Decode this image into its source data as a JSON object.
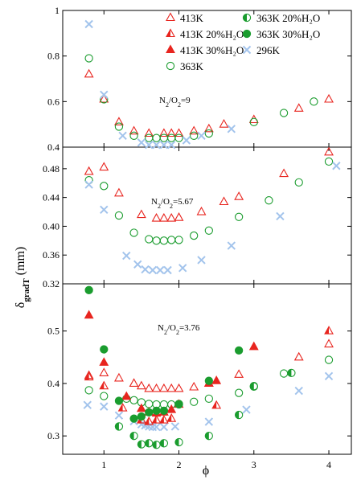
{
  "colors": {
    "red": "#e8251f",
    "green": "#1a9c2e",
    "lightblue": "#a3c4ec"
  },
  "chart_data": {
    "type": "scatter",
    "xlabel": "ϕ",
    "ylabel_main": "δ",
    "ylabel_sub": "gradT",
    "ylabel_unit": " (mm)",
    "xlim": [
      0.45,
      4.3
    ],
    "x_ticks": [
      1,
      2,
      3,
      4
    ],
    "legend": [
      {
        "name": "413K",
        "marker": "tri-open",
        "color": "#e8251f"
      },
      {
        "name": "363K 20%H₂O",
        "marker": "circ-half",
        "color": "#1a9c2e"
      },
      {
        "name": "413K 20%H₂O",
        "marker": "tri-half",
        "color": "#e8251f"
      },
      {
        "name": "363K 30%H₂O",
        "marker": "circ-filled",
        "color": "#1a9c2e"
      },
      {
        "name": "413K 30%H₂O",
        "marker": "tri-filled",
        "color": "#e8251f"
      },
      {
        "name": "296K",
        "marker": "cross",
        "color": "#a3c4ec"
      },
      {
        "name": "363K",
        "marker": "circ-open",
        "color": "#1a9c2e"
      }
    ],
    "panels": [
      {
        "id": "top",
        "annotation_main": "N",
        "annotation_sub1": "2",
        "annotation_mid": "/O",
        "annotation_sub2": "2",
        "annotation_end": "=9",
        "ylim": [
          0.4,
          1.0
        ],
        "y_ticks": [
          0.4,
          0.6,
          0.8,
          1.0
        ],
        "y_tick_labels": [
          "0.4",
          "0.6",
          "0.8",
          "1"
        ],
        "series": [
          {
            "name": "413K",
            "marker": "tri-open",
            "color": "#e8251f",
            "points": [
              [
                0.8,
                0.72
              ],
              [
                1.0,
                0.61
              ],
              [
                1.2,
                0.51
              ],
              [
                1.4,
                0.47
              ],
              [
                1.6,
                0.46
              ],
              [
                1.8,
                0.46
              ],
              [
                1.9,
                0.46
              ],
              [
                2.0,
                0.46
              ],
              [
                2.2,
                0.47
              ],
              [
                2.4,
                0.48
              ],
              [
                2.6,
                0.5
              ],
              [
                3.0,
                0.52
              ],
              [
                3.6,
                0.57
              ],
              [
                4.0,
                0.61
              ]
            ]
          },
          {
            "name": "363K",
            "marker": "circ-open",
            "color": "#1a9c2e",
            "points": [
              [
                0.8,
                0.79
              ],
              [
                1.0,
                0.61
              ],
              [
                1.2,
                0.49
              ],
              [
                1.4,
                0.45
              ],
              [
                1.6,
                0.44
              ],
              [
                1.7,
                0.44
              ],
              [
                1.8,
                0.44
              ],
              [
                1.9,
                0.44
              ],
              [
                2.0,
                0.44
              ],
              [
                2.2,
                0.45
              ],
              [
                2.4,
                0.46
              ],
              [
                3.0,
                0.51
              ],
              [
                3.4,
                0.55
              ],
              [
                3.8,
                0.6
              ]
            ]
          },
          {
            "name": "296K",
            "marker": "cross",
            "color": "#a3c4ec",
            "points": [
              [
                0.8,
                0.94
              ],
              [
                1.0,
                0.63
              ],
              [
                1.25,
                0.45
              ],
              [
                1.5,
                0.42
              ],
              [
                1.6,
                0.41
              ],
              [
                1.7,
                0.41
              ],
              [
                1.8,
                0.41
              ],
              [
                1.9,
                0.41
              ],
              [
                2.1,
                0.43
              ],
              [
                2.3,
                0.45
              ],
              [
                2.7,
                0.48
              ]
            ]
          }
        ]
      },
      {
        "id": "middle",
        "annotation_main": "N",
        "annotation_sub1": "2",
        "annotation_mid": "/O",
        "annotation_sub2": "2",
        "annotation_end": "=5.67",
        "ylim": [
          0.32,
          0.51
        ],
        "y_ticks": [
          0.32,
          0.36,
          0.4,
          0.44,
          0.48
        ],
        "y_tick_labels": [
          "0.32",
          "0.36",
          "0.40",
          "0.44",
          "0.48"
        ],
        "series": [
          {
            "name": "413K",
            "marker": "tri-open",
            "color": "#e8251f",
            "points": [
              [
                0.8,
                0.476
              ],
              [
                1.0,
                0.482
              ],
              [
                1.2,
                0.446
              ],
              [
                1.5,
                0.416
              ],
              [
                1.7,
                0.411
              ],
              [
                1.8,
                0.411
              ],
              [
                1.9,
                0.411
              ],
              [
                2.0,
                0.412
              ],
              [
                2.3,
                0.42
              ],
              [
                2.6,
                0.434
              ],
              [
                2.8,
                0.441
              ],
              [
                3.4,
                0.473
              ],
              [
                4.0,
                0.503
              ]
            ]
          },
          {
            "name": "363K",
            "marker": "circ-open",
            "color": "#1a9c2e",
            "points": [
              [
                0.8,
                0.464
              ],
              [
                1.0,
                0.456
              ],
              [
                1.2,
                0.415
              ],
              [
                1.4,
                0.391
              ],
              [
                1.6,
                0.382
              ],
              [
                1.7,
                0.38
              ],
              [
                1.8,
                0.38
              ],
              [
                1.9,
                0.381
              ],
              [
                2.0,
                0.381
              ],
              [
                2.2,
                0.387
              ],
              [
                2.4,
                0.394
              ],
              [
                2.8,
                0.413
              ],
              [
                3.2,
                0.436
              ],
              [
                3.6,
                0.461
              ],
              [
                4.0,
                0.49
              ]
            ]
          },
          {
            "name": "296K",
            "marker": "cross",
            "color": "#a3c4ec",
            "points": [
              [
                0.8,
                0.458
              ],
              [
                1.0,
                0.423
              ],
              [
                1.3,
                0.359
              ],
              [
                1.45,
                0.347
              ],
              [
                1.55,
                0.34
              ],
              [
                1.65,
                0.339
              ],
              [
                1.75,
                0.339
              ],
              [
                1.85,
                0.339
              ],
              [
                2.05,
                0.342
              ],
              [
                2.3,
                0.353
              ],
              [
                2.7,
                0.373
              ],
              [
                3.35,
                0.414
              ],
              [
                4.1,
                0.484
              ]
            ]
          }
        ]
      },
      {
        "id": "bottom",
        "annotation_main": "N",
        "annotation_sub1": "2",
        "annotation_mid": "/O",
        "annotation_sub2": "2",
        "annotation_end": "=3.76",
        "ylim": [
          0.265,
          0.59
        ],
        "y_ticks": [
          0.3,
          0.4,
          0.5
        ],
        "y_tick_labels": [
          "0.3",
          "0.4",
          "0.5"
        ],
        "series": [
          {
            "name": "413K",
            "marker": "tri-open",
            "color": "#e8251f",
            "points": [
              [
                0.8,
                0.415
              ],
              [
                1.0,
                0.42
              ],
              [
                1.2,
                0.41
              ],
              [
                1.4,
                0.4
              ],
              [
                1.5,
                0.395
              ],
              [
                1.6,
                0.39
              ],
              [
                1.7,
                0.39
              ],
              [
                1.8,
                0.39
              ],
              [
                1.9,
                0.39
              ],
              [
                2.0,
                0.39
              ],
              [
                2.2,
                0.393
              ],
              [
                2.4,
                0.4
              ],
              [
                2.8,
                0.417
              ],
              [
                3.6,
                0.45
              ],
              [
                4.0,
                0.475
              ]
            ]
          },
          {
            "name": "363K",
            "marker": "circ-open",
            "color": "#1a9c2e",
            "points": [
              [
                0.8,
                0.387
              ],
              [
                1.0,
                0.376
              ],
              [
                1.3,
                0.371
              ],
              [
                1.4,
                0.368
              ],
              [
                1.5,
                0.364
              ],
              [
                1.6,
                0.361
              ],
              [
                1.7,
                0.36
              ],
              [
                1.8,
                0.36
              ],
              [
                1.9,
                0.36
              ],
              [
                2.0,
                0.361
              ],
              [
                2.2,
                0.365
              ],
              [
                2.4,
                0.371
              ],
              [
                2.8,
                0.382
              ],
              [
                3.0,
                0.394
              ],
              [
                3.4,
                0.419
              ],
              [
                4.0,
                0.445
              ]
            ]
          },
          {
            "name": "296K",
            "marker": "cross",
            "color": "#a3c4ec",
            "points": [
              [
                0.78,
                0.359
              ],
              [
                1.0,
                0.356
              ],
              [
                1.2,
                0.339
              ],
              [
                1.4,
                0.328
              ],
              [
                1.5,
                0.322
              ],
              [
                1.55,
                0.32
              ],
              [
                1.6,
                0.318
              ],
              [
                1.65,
                0.317
              ],
              [
                1.7,
                0.317
              ],
              [
                1.8,
                0.317
              ],
              [
                1.95,
                0.318
              ],
              [
                2.4,
                0.327
              ],
              [
                2.9,
                0.35
              ],
              [
                3.6,
                0.386
              ],
              [
                4.0,
                0.414
              ]
            ]
          },
          {
            "name": "413K 20%H₂O",
            "marker": "tri-half",
            "color": "#e8251f",
            "points": [
              [
                0.8,
                0.412
              ],
              [
                1.0,
                0.395
              ],
              [
                1.25,
                0.353
              ],
              [
                1.5,
                0.33
              ],
              [
                1.6,
                0.327
              ],
              [
                1.7,
                0.33
              ],
              [
                1.8,
                0.33
              ],
              [
                1.9,
                0.333
              ],
              [
                2.5,
                0.358
              ],
              [
                4.0,
                0.5
              ]
            ]
          },
          {
            "name": "413K 30%H₂O",
            "marker": "tri-filled",
            "color": "#e8251f",
            "points": [
              [
                0.8,
                0.53
              ],
              [
                1.0,
                0.44
              ],
              [
                1.3,
                0.375
              ],
              [
                1.5,
                0.352
              ],
              [
                1.6,
                0.345
              ],
              [
                1.7,
                0.343
              ],
              [
                1.8,
                0.345
              ],
              [
                1.9,
                0.35
              ],
              [
                2.0,
                0.36
              ],
              [
                2.4,
                0.4
              ],
              [
                2.5,
                0.405
              ],
              [
                3.0,
                0.47
              ]
            ]
          },
          {
            "name": "363K 20%H₂O",
            "marker": "circ-half",
            "color": "#1a9c2e",
            "points": [
              [
                1.2,
                0.318
              ],
              [
                1.4,
                0.3
              ],
              [
                1.5,
                0.284
              ],
              [
                1.6,
                0.286
              ],
              [
                1.7,
                0.283
              ],
              [
                1.8,
                0.286
              ],
              [
                2.0,
                0.288
              ],
              [
                2.4,
                0.3
              ],
              [
                2.8,
                0.34
              ],
              [
                3.0,
                0.395
              ],
              [
                3.5,
                0.42
              ]
            ]
          },
          {
            "name": "363K 30%H₂O",
            "marker": "circ-filled",
            "color": "#1a9c2e",
            "points": [
              [
                0.8,
                0.578
              ],
              [
                1.0,
                0.465
              ],
              [
                1.2,
                0.367
              ],
              [
                1.4,
                0.333
              ],
              [
                1.5,
                0.337
              ],
              [
                1.6,
                0.345
              ],
              [
                1.7,
                0.348
              ],
              [
                1.8,
                0.348
              ],
              [
                2.0,
                0.36
              ],
              [
                2.4,
                0.405
              ],
              [
                2.8,
                0.463
              ]
            ]
          }
        ]
      }
    ]
  }
}
